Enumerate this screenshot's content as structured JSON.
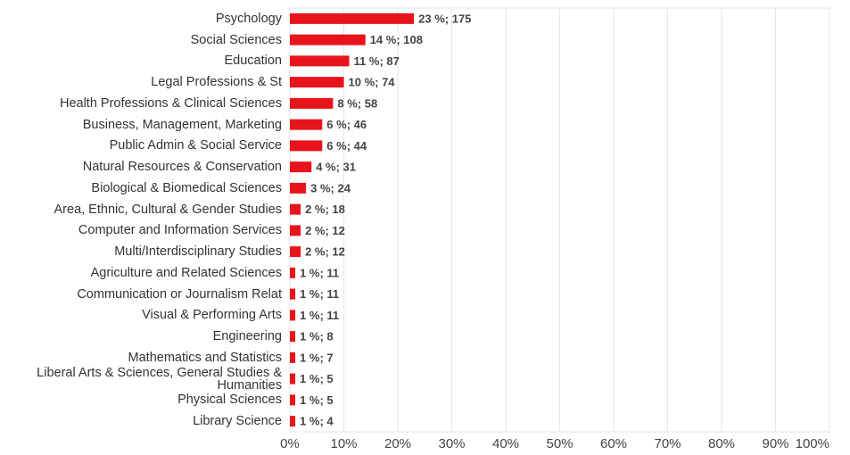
{
  "chart_data": {
    "type": "bar",
    "orientation": "horizontal",
    "categories": [
      "Psychology",
      "Social Sciences",
      "Education",
      "Legal Professions & St",
      "Health Professions & Clinical Sciences",
      "Business, Management, Marketing",
      "Public Admin & Social Service",
      "Natural Resources & Conservation",
      "Biological & Biomedical Sciences",
      "Area, Ethnic, Cultural & Gender Studies",
      "Computer and Information Services",
      "Multi/Interdisciplinary Studies",
      "Agriculture and Related Sciences",
      "Communication or Journalism Relat",
      "Visual & Performing Arts",
      "Engineering",
      "Mathematics and Statistics",
      "Liberal Arts & Sciences, General Studies & Humanities",
      "Physical Sciences",
      "Library Science"
    ],
    "values": [
      23,
      14,
      11,
      10,
      8,
      6,
      6,
      4,
      3,
      2,
      2,
      2,
      1,
      1,
      1,
      1,
      1,
      1,
      1,
      1
    ],
    "value_labels": [
      "23 %; 175",
      "14 %; 108",
      "11 %; 87",
      "10 %; 74",
      "8 %; 58",
      "6 %; 46",
      "6 %; 44",
      "4 %; 31",
      "3 %; 24",
      "2 %; 18",
      "2 %; 12",
      "2 %; 12",
      "1 %; 11",
      "1 %; 11",
      "1 %; 11",
      "1 %; 8",
      "1 %; 7",
      "1 %; 5",
      "1 %; 5",
      "1 %; 4"
    ],
    "color": "#e8141c",
    "xlim": [
      0,
      100
    ],
    "xticks": [
      {
        "value": 0,
        "label": "0%"
      },
      {
        "value": 10,
        "label": "10%"
      },
      {
        "value": 20,
        "label": "20%"
      },
      {
        "value": 30,
        "label": "30%"
      },
      {
        "value": 40,
        "label": "40%"
      },
      {
        "value": 50,
        "label": "50%"
      },
      {
        "value": 60,
        "label": "60%"
      },
      {
        "value": 70,
        "label": "70%"
      },
      {
        "value": 80,
        "label": "80%"
      },
      {
        "value": 90,
        "label": "90%"
      },
      {
        "value": 100,
        "label": "100%"
      }
    ],
    "grid": true
  }
}
